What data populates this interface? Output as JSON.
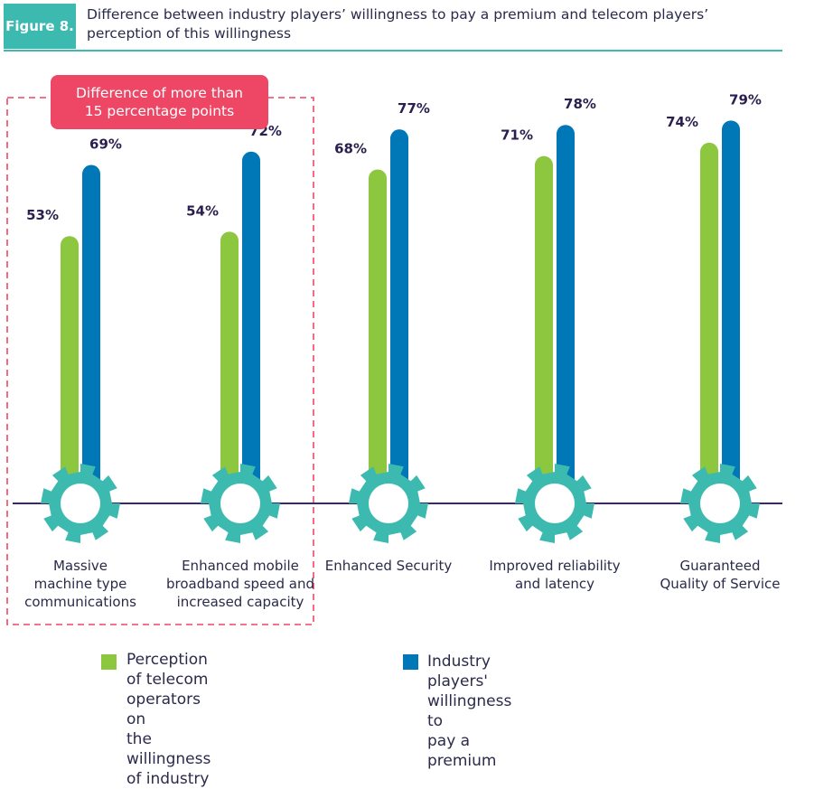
{
  "figure": {
    "badge": "Figure 8.",
    "title": "Difference between industry players’ willingness to pay a premium and telecom players’ perception of this willingness"
  },
  "callout": "Difference of more than 15 percentage points",
  "colors": {
    "perception": "#8dc63f",
    "willingness": "#0077b6",
    "gear": "#3dbab0",
    "axis": "#3b2a5e",
    "accent": "#3dbab0",
    "callout": "#ee4766"
  },
  "chart_data": {
    "type": "bar",
    "categories": [
      "Massive machine type communications",
      "Enhanced mobile broadband speed and increased capacity",
      "Enhanced Security",
      "Improved reliability and latency",
      "Guaranteed Quality of Service"
    ],
    "category_lines": [
      [
        "Massive",
        "machine type",
        "communications"
      ],
      [
        "Enhanced mobile",
        "broadband speed and",
        "increased capacity"
      ],
      [
        "Enhanced Security"
      ],
      [
        "Improved reliability",
        "and latency"
      ],
      [
        "Guaranteed",
        "Quality of Service"
      ]
    ],
    "series": [
      {
        "name": "Perception of telecom operators on the willingness of industry",
        "values": [
          53,
          54,
          68,
          71,
          74
        ]
      },
      {
        "name": "Industry players' willingness to pay a premium",
        "values": [
          69,
          72,
          77,
          78,
          79
        ]
      }
    ],
    "value_labels": [
      [
        "53%",
        "54%",
        "68%",
        "71%",
        "74%"
      ],
      [
        "69%",
        "72%",
        "77%",
        "78%",
        "79%"
      ]
    ],
    "unit": "%",
    "legend_lines": [
      [
        "Perception of telecom operators on",
        "the willingness of industry"
      ],
      [
        "Industry players' willingness to",
        "pay a premium"
      ]
    ],
    "legend_position": "bottom"
  }
}
